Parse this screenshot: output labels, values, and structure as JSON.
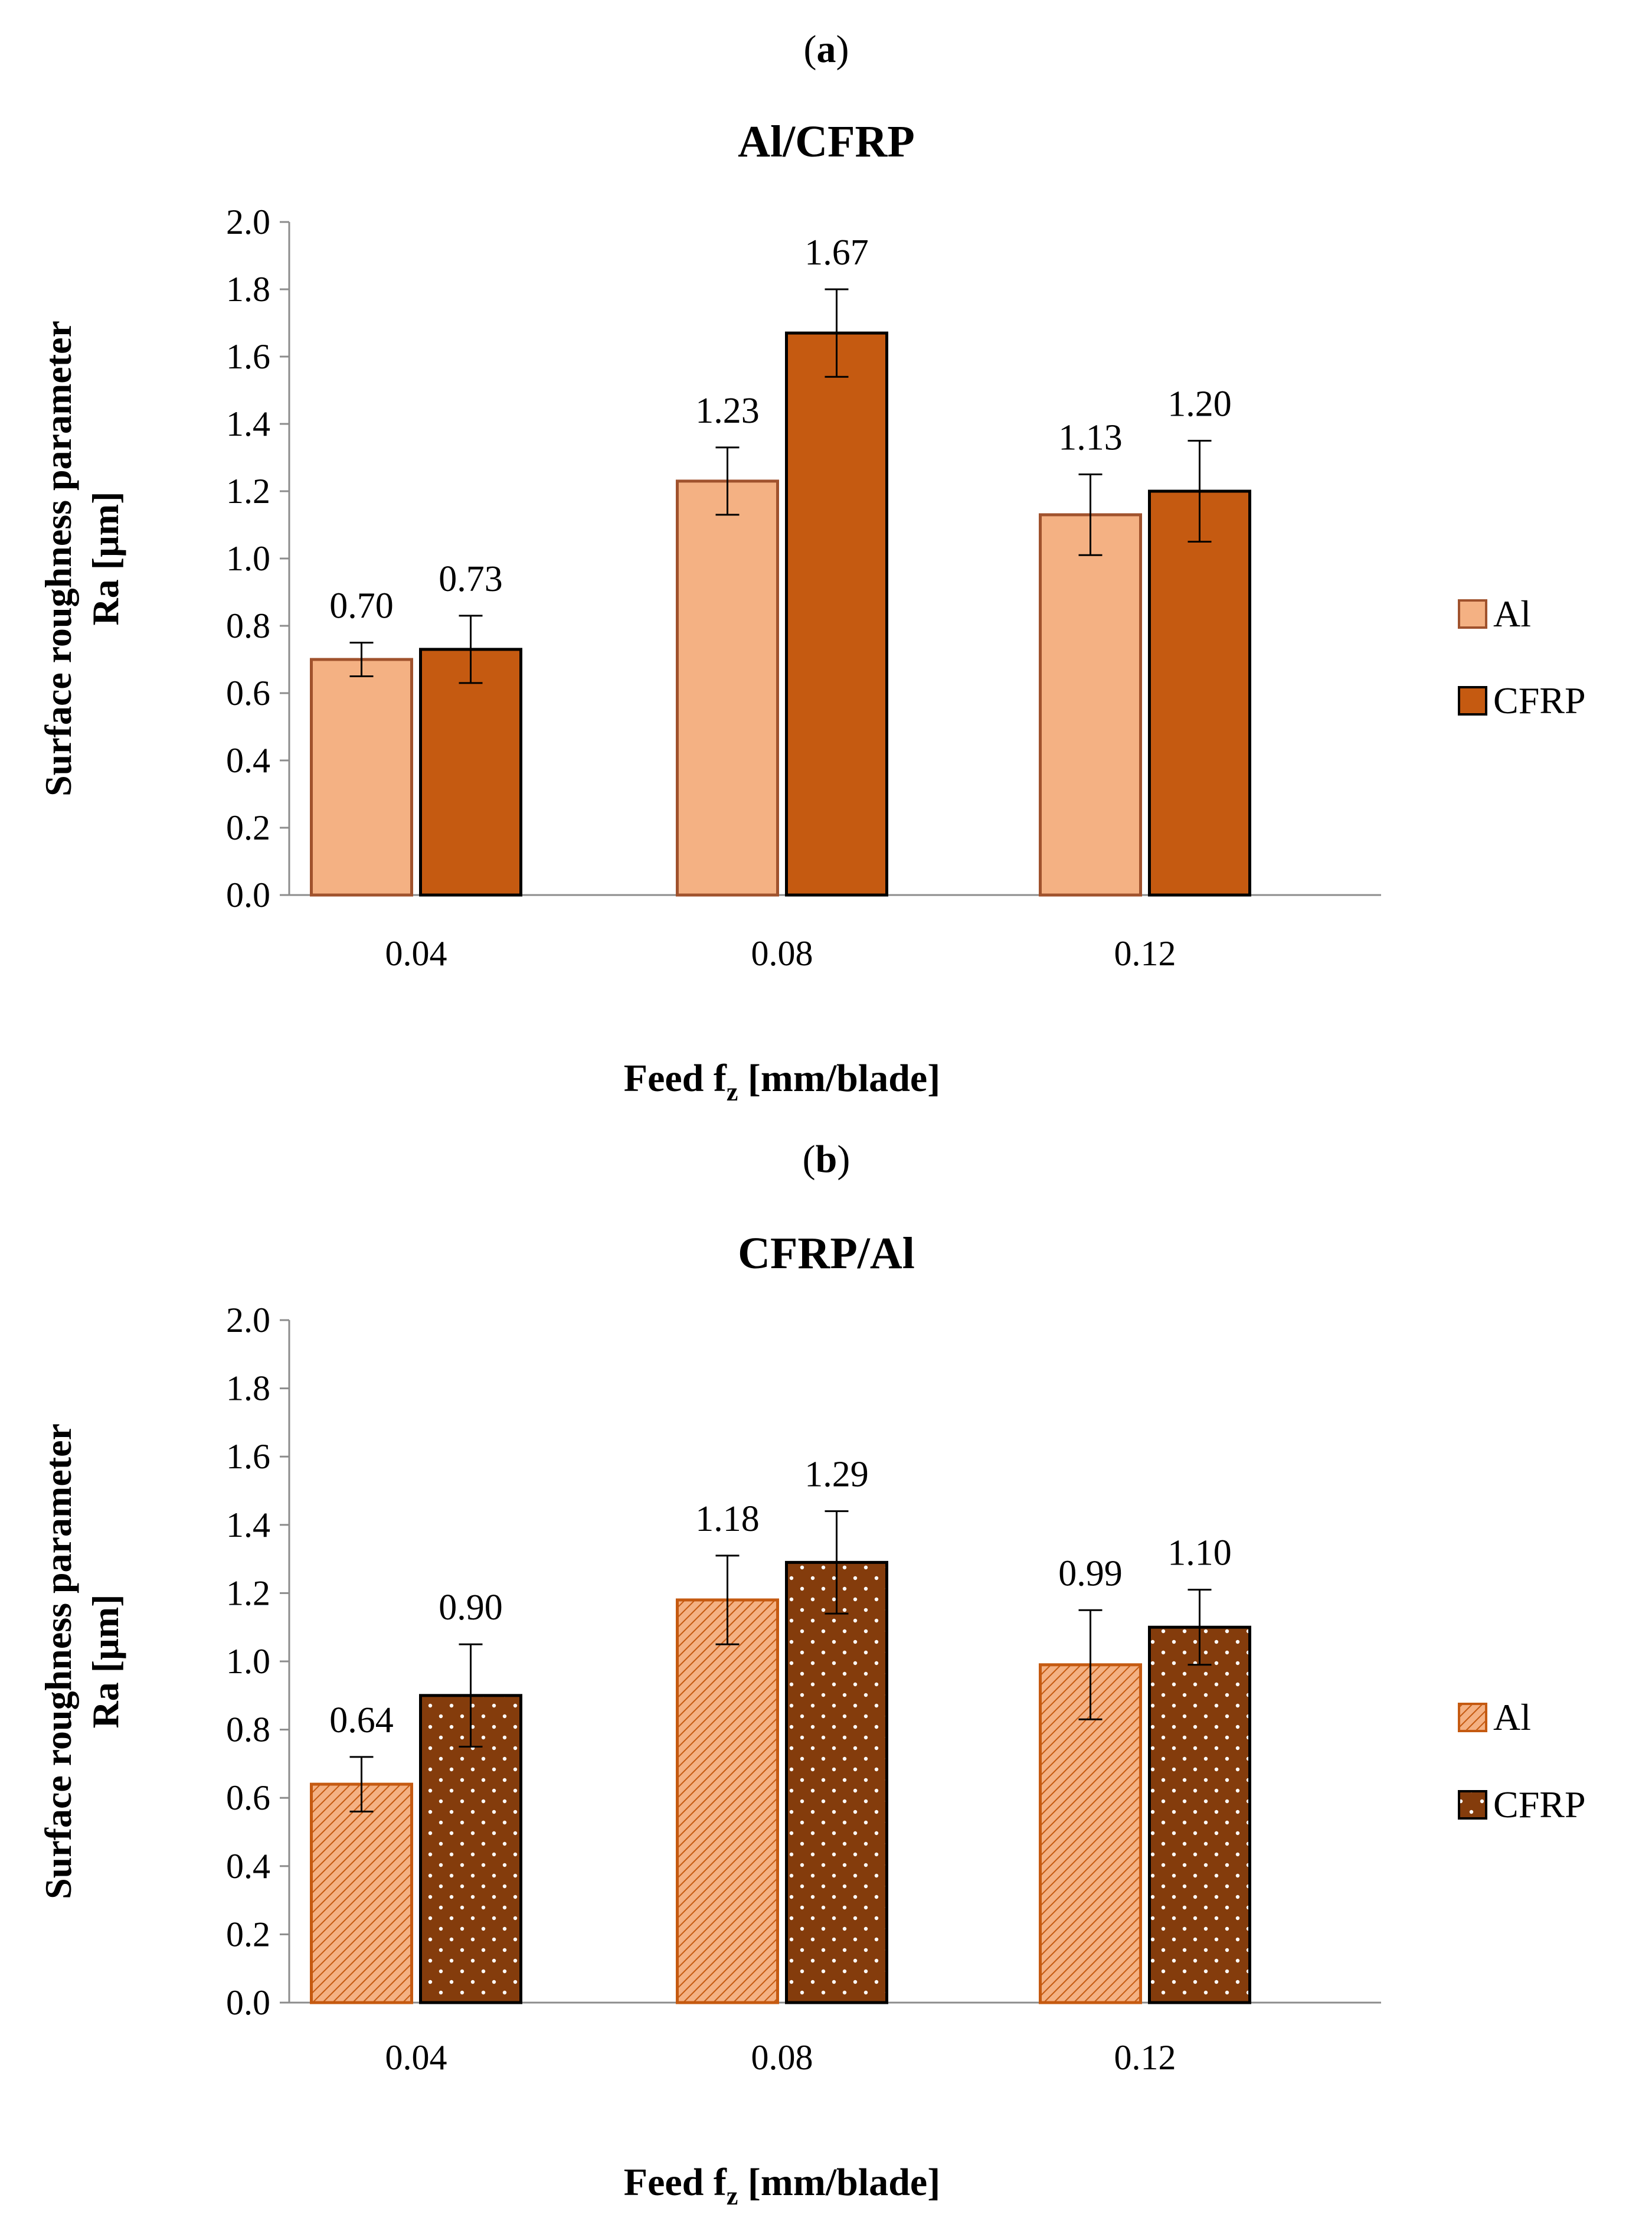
{
  "chart_data": [
    {
      "type": "bar",
      "panel_label": "(a)",
      "title": "Al/CFRP",
      "ylabel_line1": "Surface roughness parameter",
      "ylabel_line2": "Ra [µm]",
      "xlabel_main": "Feed f",
      "xlabel_sub": "z",
      "xlabel_unit": " [mm/blade]",
      "categories": [
        "0.04",
        "0.08",
        "0.12"
      ],
      "ylim": [
        0,
        2.0
      ],
      "yticks": [
        "0.0",
        "0.2",
        "0.4",
        "0.6",
        "0.8",
        "1.0",
        "1.2",
        "1.4",
        "1.6",
        "1.8",
        "2.0"
      ],
      "grid": false,
      "legend_position": "right",
      "series": [
        {
          "name": "Al",
          "values": [
            0.7,
            1.23,
            1.13
          ],
          "labels": [
            "0.70",
            "1.23",
            "1.13"
          ],
          "error_low": [
            0.65,
            1.13,
            1.01
          ],
          "error_high": [
            0.75,
            1.33,
            1.25
          ],
          "fill": "#F4B183",
          "stroke": "#A0522D",
          "pattern": "solid"
        },
        {
          "name": "CFRP",
          "values": [
            0.73,
            1.67,
            1.2
          ],
          "labels": [
            "0.73",
            "1.67",
            "1.20"
          ],
          "error_low": [
            0.63,
            1.54,
            1.05
          ],
          "error_high": [
            0.83,
            1.8,
            1.35
          ],
          "fill": "#C55A11",
          "stroke": "#000000",
          "pattern": "solid"
        }
      ]
    },
    {
      "type": "bar",
      "panel_label": "(b)",
      "title": "CFRP/Al",
      "ylabel_line1": "Surface roughness parameter",
      "ylabel_line2": "Ra [µm]",
      "xlabel_main": "Feed f",
      "xlabel_sub": "z",
      "xlabel_unit": " [mm/blade]",
      "categories": [
        "0.04",
        "0.08",
        "0.12"
      ],
      "ylim": [
        0,
        2.0
      ],
      "yticks": [
        "0.0",
        "0.2",
        "0.4",
        "0.6",
        "0.8",
        "1.0",
        "1.2",
        "1.4",
        "1.6",
        "1.8",
        "2.0"
      ],
      "grid": false,
      "legend_position": "right",
      "series": [
        {
          "name": "Al",
          "values": [
            0.64,
            1.18,
            0.99
          ],
          "labels": [
            "0.64",
            "1.18",
            "0.99"
          ],
          "error_low": [
            0.56,
            1.05,
            0.83
          ],
          "error_high": [
            0.72,
            1.31,
            1.15
          ],
          "fill": "#F4B183",
          "stroke": "#C55A11",
          "pattern": "hatch"
        },
        {
          "name": "CFRP",
          "values": [
            0.9,
            1.29,
            1.1
          ],
          "labels": [
            "0.90",
            "1.29",
            "1.10"
          ],
          "error_low": [
            0.75,
            1.14,
            0.99
          ],
          "error_high": [
            1.05,
            1.44,
            1.21
          ],
          "fill": "#843C0C",
          "stroke": "#000000",
          "pattern": "dots"
        }
      ]
    }
  ]
}
